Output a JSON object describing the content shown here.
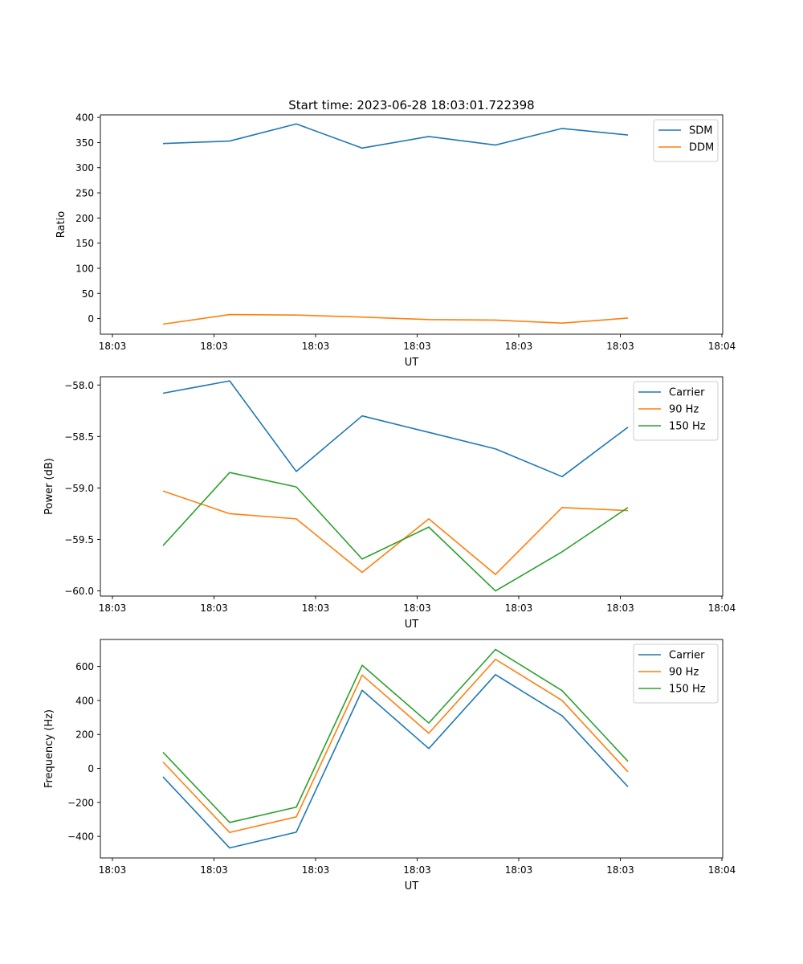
{
  "title": "Start time: 2023-06-28 18:03:01.722398",
  "colors": {
    "blue": "#1f77b4",
    "orange": "#ff7f0e",
    "green": "#2ca02c"
  },
  "chart_data": [
    {
      "type": "line",
      "xlabel": "UT",
      "ylabel": "Ratio",
      "x_tick_labels": [
        "18:03",
        "18:03",
        "18:03",
        "18:03",
        "18:03",
        "18:03",
        "18:04"
      ],
      "y_ticks": [
        0,
        50,
        100,
        150,
        200,
        250,
        300,
        350,
        400
      ],
      "ylim": [
        -31,
        405
      ],
      "legend_position": "upper right",
      "series": [
        {
          "name": "SDM",
          "color": "#1f77b4",
          "values": [
            348,
            353,
            387,
            339,
            362,
            345,
            378,
            365
          ]
        },
        {
          "name": "DDM",
          "color": "#ff7f0e",
          "values": [
            -11,
            8,
            7,
            3,
            -2,
            -3,
            -9,
            1
          ]
        }
      ]
    },
    {
      "type": "line",
      "xlabel": "UT",
      "ylabel": "Power (dB)",
      "x_tick_labels": [
        "18:03",
        "18:03",
        "18:03",
        "18:03",
        "18:03",
        "18:03",
        "18:04"
      ],
      "y_ticks": [
        -60.0,
        -59.5,
        -59.0,
        -58.5,
        -58.0
      ],
      "y_tick_labels": [
        "−60.0",
        "−59.5",
        "−59.0",
        "−58.5",
        "−58.0"
      ],
      "ylim": [
        -60.05,
        -57.92
      ],
      "legend_position": "upper right",
      "series": [
        {
          "name": "Carrier",
          "color": "#1f77b4",
          "values": [
            -58.08,
            -57.96,
            -58.84,
            -58.3,
            -58.46,
            -58.62,
            -58.89,
            -58.41
          ]
        },
        {
          "name": "90 Hz",
          "color": "#ff7f0e",
          "values": [
            -59.03,
            -59.25,
            -59.3,
            -59.82,
            -59.3,
            -59.84,
            -59.19,
            -59.22
          ]
        },
        {
          "name": "150 Hz",
          "color": "#2ca02c",
          "values": [
            -59.56,
            -58.85,
            -58.99,
            -59.69,
            -59.38,
            -60.0,
            -59.62,
            -59.19
          ]
        }
      ]
    },
    {
      "type": "line",
      "xlabel": "UT",
      "ylabel": "Frequency (Hz)",
      "x_tick_labels": [
        "18:03",
        "18:03",
        "18:03",
        "18:03",
        "18:03",
        "18:03",
        "18:04"
      ],
      "y_ticks": [
        -400,
        -200,
        0,
        200,
        400,
        600
      ],
      "y_tick_labels": [
        "−400",
        "−200",
        "0",
        "200",
        "400",
        "600"
      ],
      "ylim": [
        -527,
        759
      ],
      "legend_position": "upper right",
      "series": [
        {
          "name": "Carrier",
          "color": "#1f77b4",
          "values": [
            -50,
            -468,
            -375,
            460,
            117,
            552,
            310,
            -108
          ]
        },
        {
          "name": "90 Hz",
          "color": "#ff7f0e",
          "values": [
            38,
            -377,
            -285,
            549,
            207,
            642,
            400,
            -20
          ]
        },
        {
          "name": "150 Hz",
          "color": "#2ca02c",
          "values": [
            95,
            -318,
            -228,
            607,
            267,
            700,
            458,
            42
          ]
        }
      ]
    }
  ]
}
